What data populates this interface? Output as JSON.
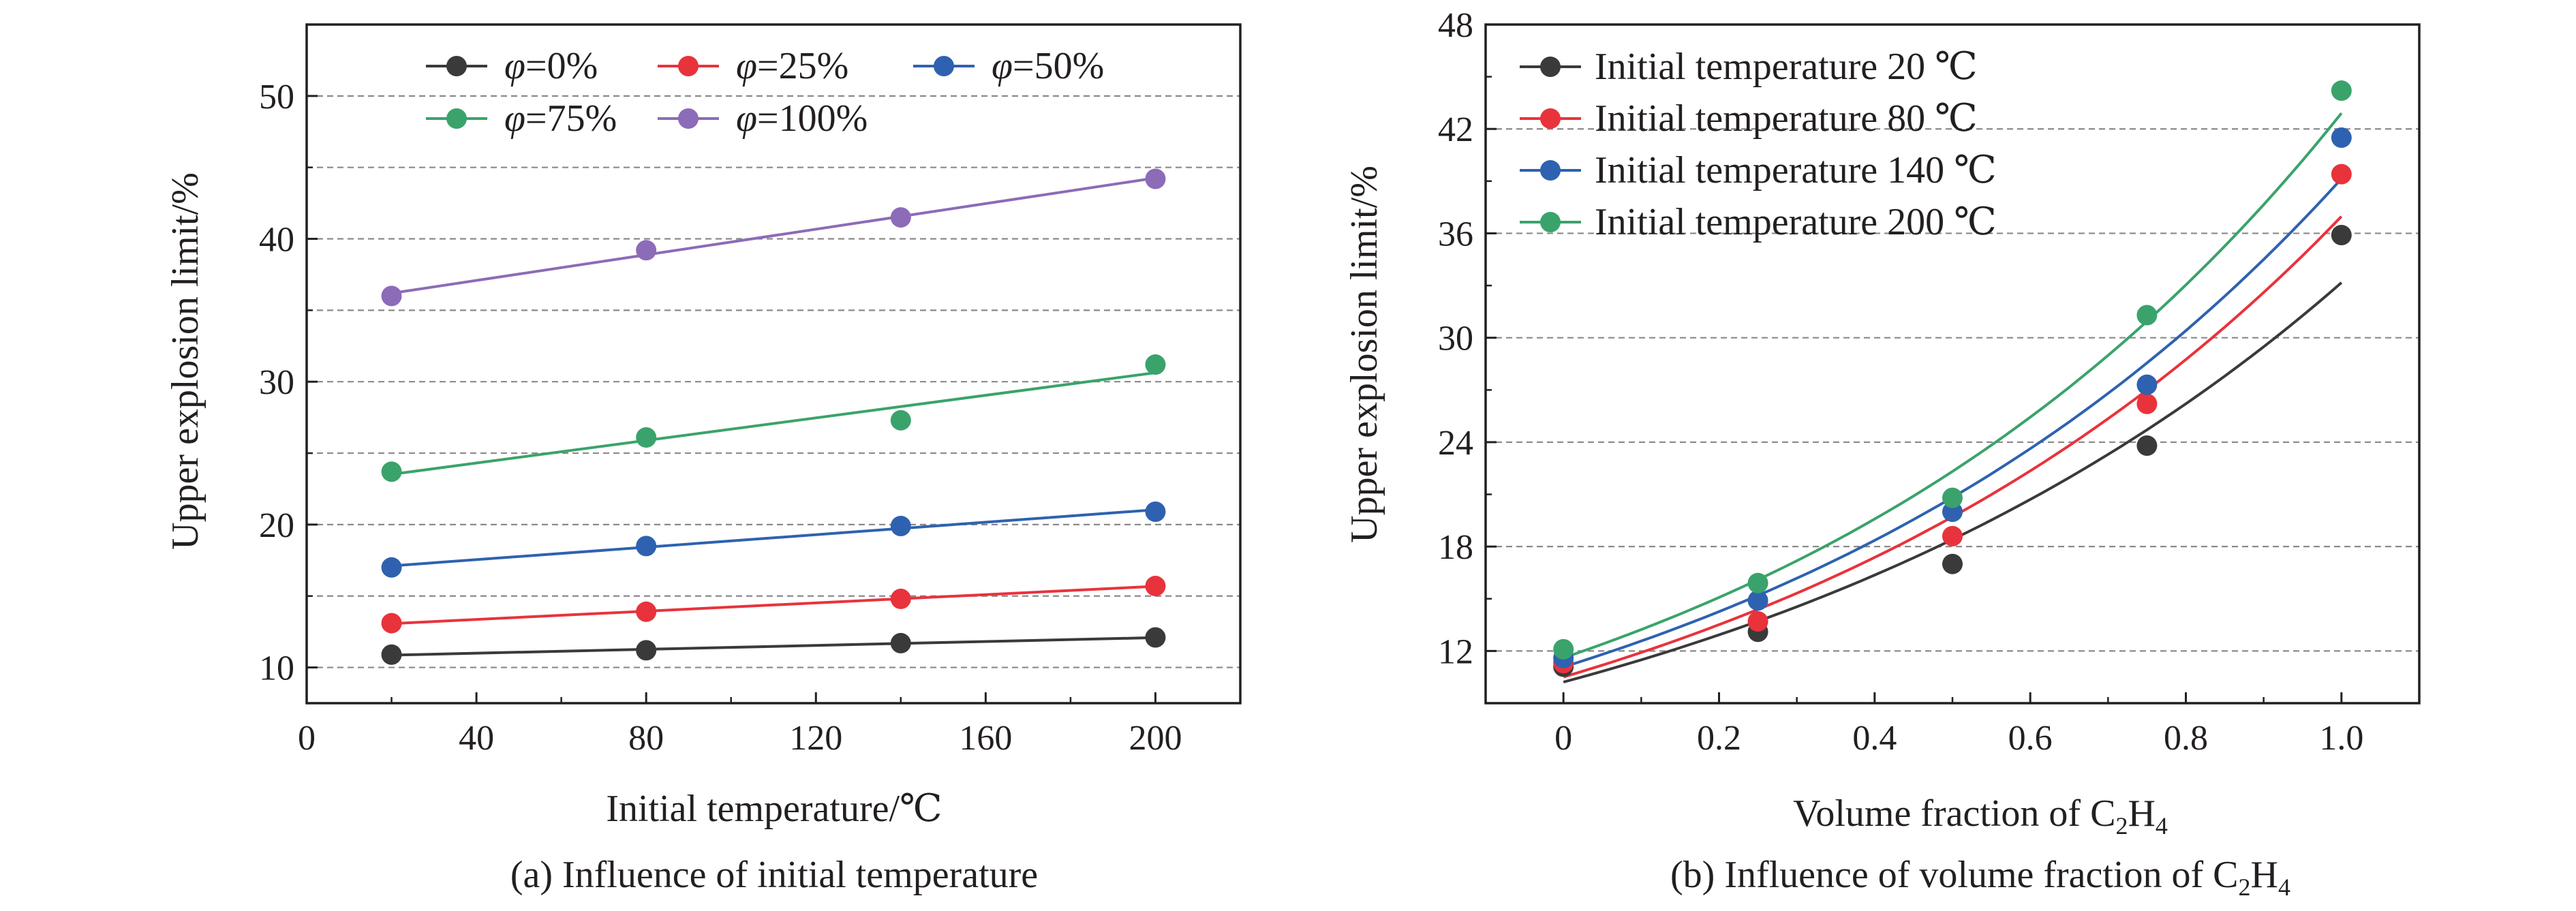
{
  "chart_data": [
    {
      "id": "a",
      "type": "scatter",
      "caption": "(a) Influence of initial temperature",
      "xlabel": "Initial temperature/℃",
      "ylabel": "Upper explosion limit/%",
      "xlim": [
        0,
        220
      ],
      "ylim": [
        7.5,
        55
      ],
      "xticks": [
        0,
        40,
        80,
        120,
        160,
        200
      ],
      "xtick_labels": [
        "0",
        "40",
        "80",
        "120",
        "160",
        "200"
      ],
      "yticks": [
        10,
        20,
        30,
        40,
        50
      ],
      "ytick_labels": [
        "10",
        "20",
        "30",
        "40",
        "50"
      ],
      "grid_lines": [
        10,
        15,
        20,
        25,
        30,
        35,
        40,
        45,
        50
      ],
      "fit": "linear",
      "x": [
        20,
        80,
        140,
        200
      ],
      "series": [
        {
          "name": "φ=0%",
          "phi_symbol": "φ",
          "phi_value": "=0%",
          "color": "#3a3a3a",
          "values": [
            10.9,
            11.2,
            11.7,
            12.1
          ]
        },
        {
          "name": "φ=25%",
          "phi_symbol": "φ",
          "phi_value": "=25%",
          "color": "#e8333c",
          "values": [
            13.1,
            13.9,
            14.8,
            15.7
          ]
        },
        {
          "name": "φ=50%",
          "phi_symbol": "φ",
          "phi_value": "=50%",
          "color": "#2e62b0",
          "values": [
            17.0,
            18.5,
            19.9,
            20.9
          ]
        },
        {
          "name": "φ=75%",
          "phi_symbol": "φ",
          "phi_value": "=75%",
          "color": "#3aa36b",
          "values": [
            23.7,
            26.1,
            27.3,
            31.2
          ]
        },
        {
          "name": "φ=100%",
          "phi_symbol": "φ",
          "phi_value": "=100%",
          "color": "#8c6bb8",
          "values": [
            36.0,
            39.2,
            41.5,
            44.2
          ]
        }
      ],
      "legend_position": "top"
    },
    {
      "id": "b",
      "type": "scatter",
      "caption_main": "(b) Influence of volume fraction of C",
      "caption_sub1": "2",
      "caption_mid": "H",
      "caption_sub2": "4",
      "xlabel_main": "Volume fraction of C",
      "xlabel_sub1": "2",
      "xlabel_mid": "H",
      "xlabel_sub2": "4",
      "ylabel": "Upper explosion limit/%",
      "xlim": [
        -0.1,
        1.1
      ],
      "ylim": [
        9,
        48
      ],
      "xticks": [
        0,
        0.2,
        0.4,
        0.6,
        0.8,
        1.0
      ],
      "xtick_labels": [
        "0",
        "0.2",
        "0.4",
        "0.6",
        "0.8",
        "1.0"
      ],
      "yticks": [
        12,
        18,
        24,
        30,
        36,
        42,
        48
      ],
      "ytick_labels": [
        "12",
        "18",
        "24",
        "30",
        "36",
        "42",
        "48"
      ],
      "grid_lines": [
        12,
        18,
        24,
        30,
        36,
        42
      ],
      "fit": "exponential",
      "x": [
        0,
        0.25,
        0.5,
        0.75,
        1.0
      ],
      "series": [
        {
          "name": "Initial temperature 20 ℃",
          "color": "#3a3a3a",
          "values": [
            11.1,
            13.1,
            17.0,
            23.8,
            35.9
          ]
        },
        {
          "name": "Initial temperature 80 ℃",
          "color": "#e8333c",
          "values": [
            11.3,
            13.7,
            18.6,
            26.2,
            39.4
          ]
        },
        {
          "name": "Initial temperature 140 ℃",
          "color": "#2e62b0",
          "values": [
            11.6,
            14.9,
            20.0,
            27.3,
            41.5
          ]
        },
        {
          "name": "Initial temperature 200 ℃",
          "color": "#3aa36b",
          "values": [
            12.1,
            15.9,
            20.8,
            31.3,
            44.2
          ]
        }
      ],
      "legend_position": "top-left"
    }
  ]
}
